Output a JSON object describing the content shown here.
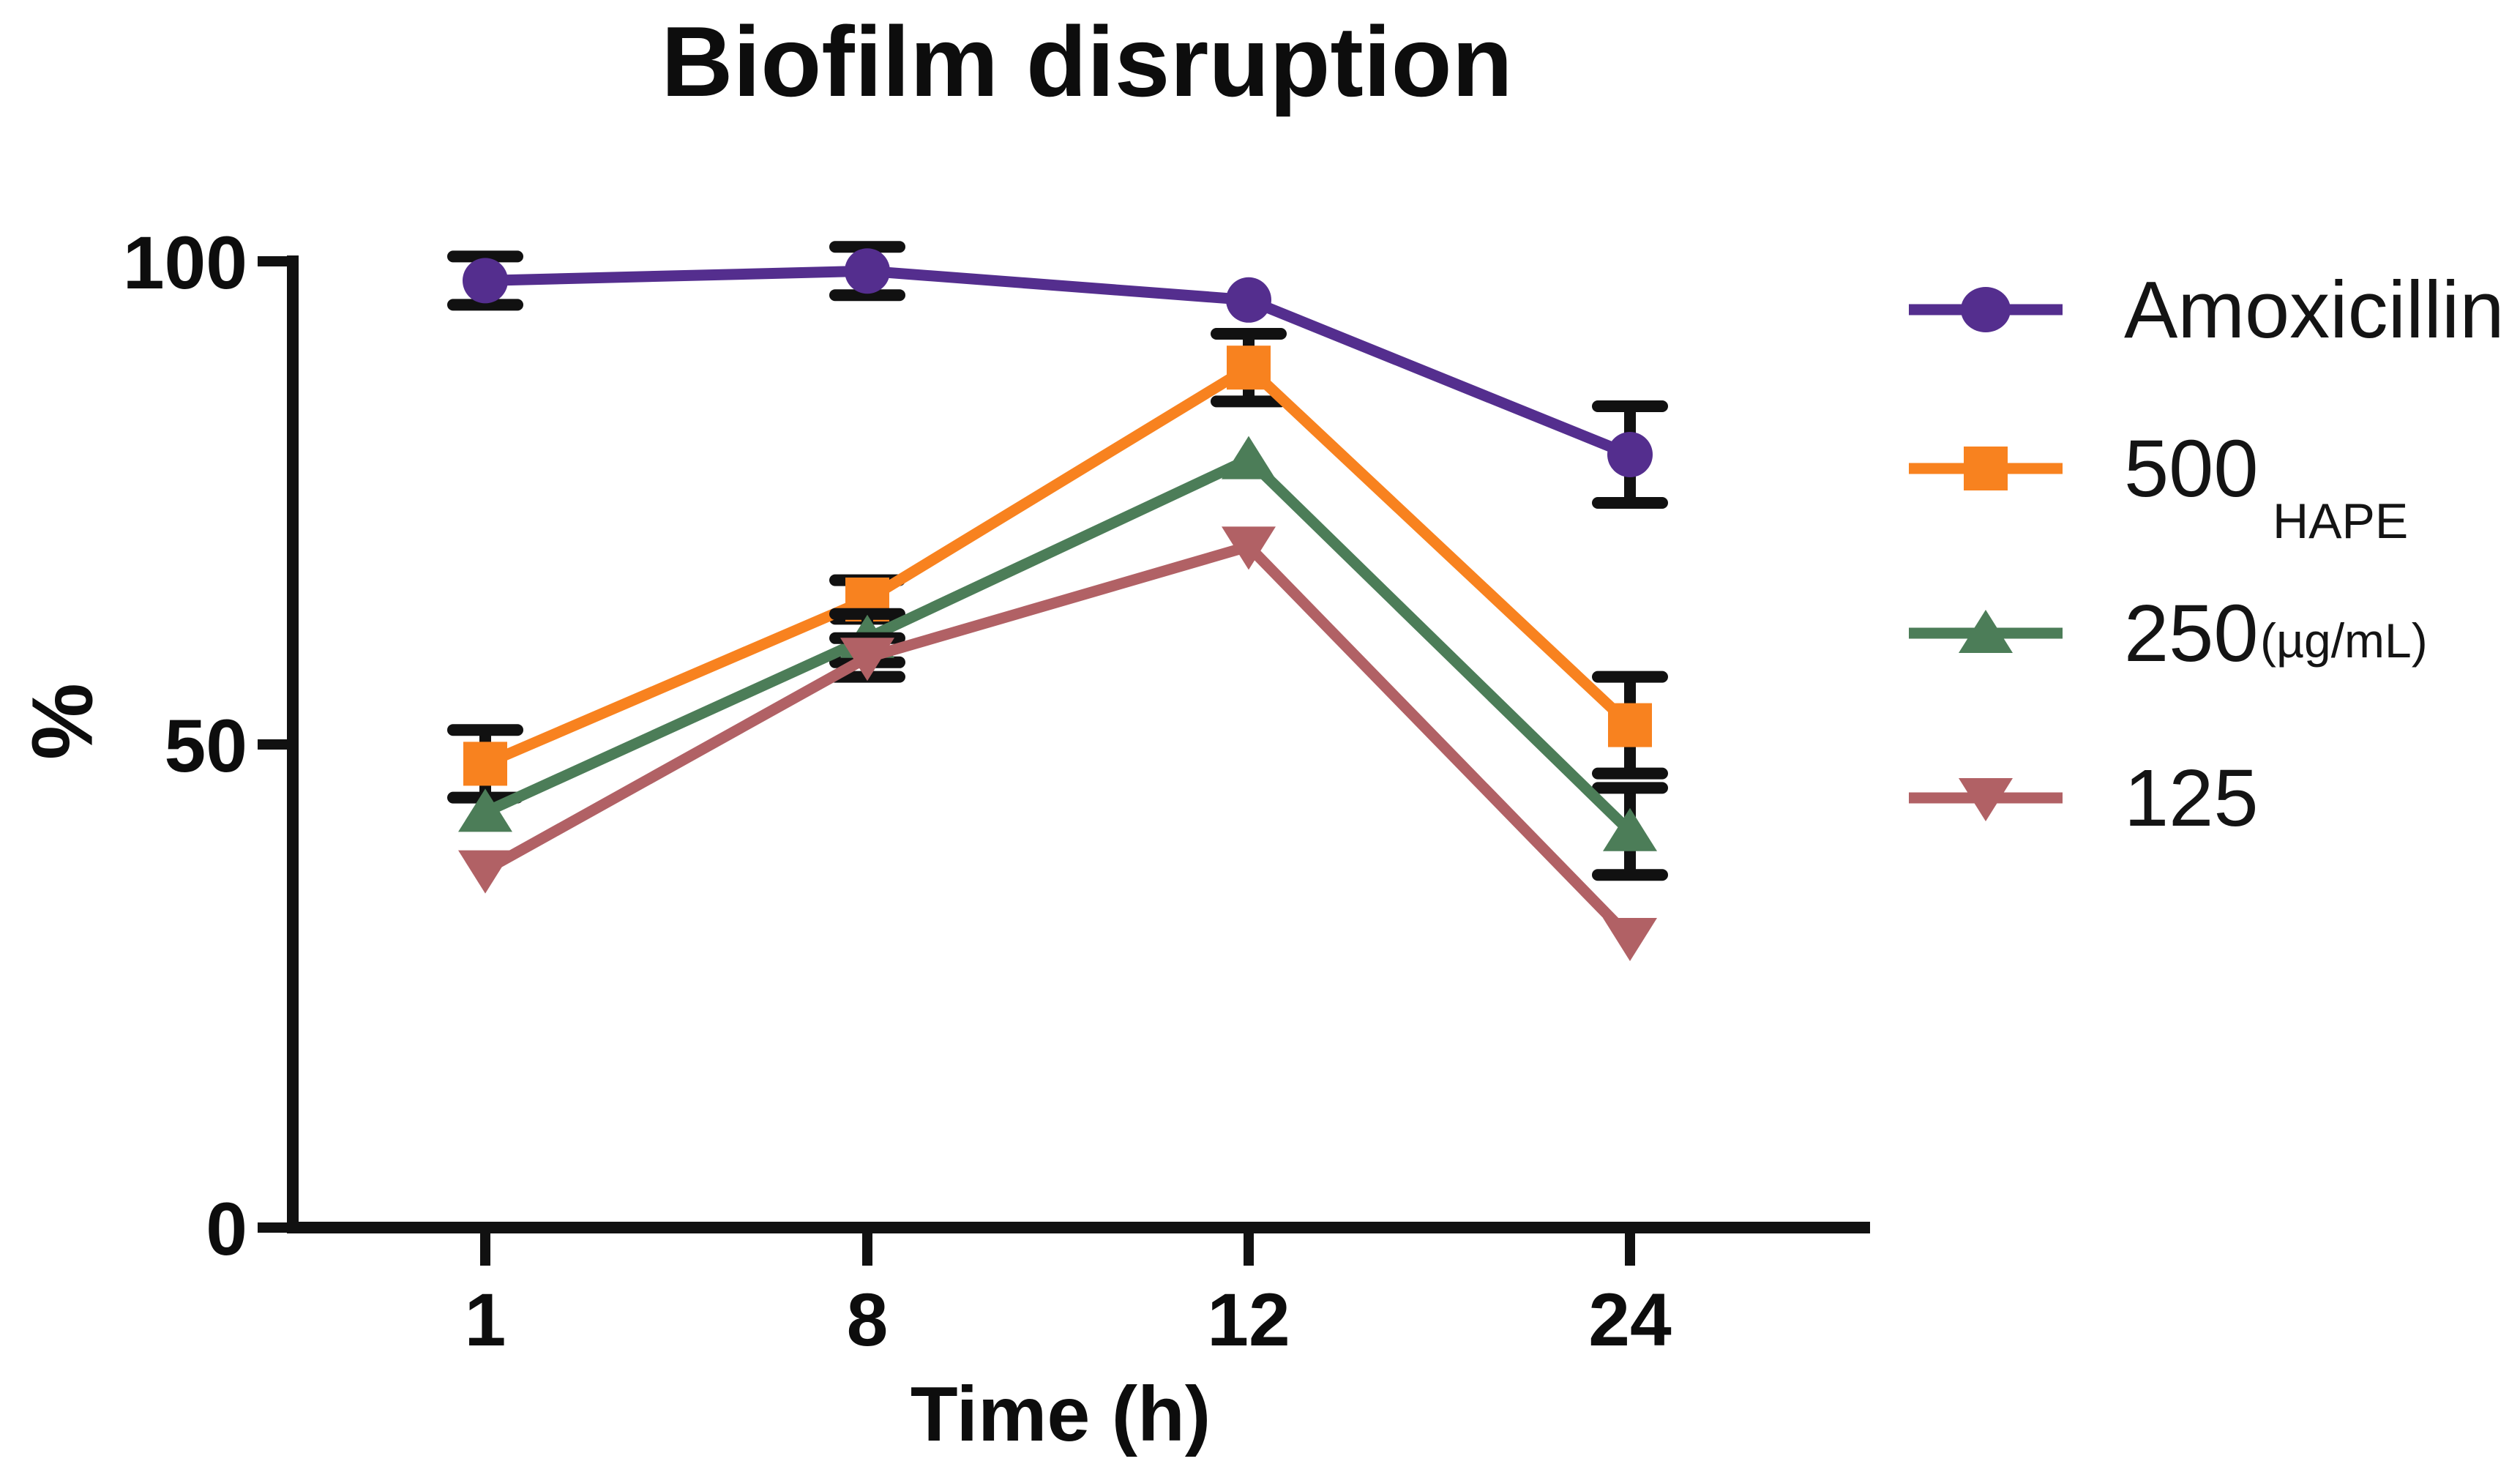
{
  "chart_data": {
    "type": "line",
    "title": "Biofilm disruption",
    "xlabel": "Time (h)",
    "ylabel": "%",
    "x_categories": [
      "1",
      "8",
      "12",
      "24"
    ],
    "y_ticks": [
      100,
      50,
      0
    ],
    "y_tick_labels": [
      "100",
      "50",
      "0"
    ],
    "ylim": [
      0,
      100
    ],
    "grid": false,
    "legend_position": "right",
    "background": "#ffffff",
    "axis_color": "#111111",
    "error_bar_color": "#111111",
    "series": [
      {
        "name": "Amoxicillin",
        "marker": "circle",
        "color": "#542E8E",
        "values": [
          98,
          99,
          96,
          80
        ],
        "errors": [
          2.5,
          2.5,
          0,
          5
        ]
      },
      {
        "name": "500",
        "marker": "square",
        "color": "#F8821F",
        "values": [
          48,
          65,
          89,
          52
        ],
        "errors": [
          3.5,
          2,
          3.5,
          5
        ]
      },
      {
        "name": "250",
        "marker": "triangle-up",
        "color": "#4C7D58",
        "values": [
          43,
          61,
          79.5,
          41
        ],
        "errors": [
          0,
          2.5,
          0,
          4.5
        ]
      },
      {
        "name": "125",
        "marker": "triangle-down",
        "color": "#B16165",
        "values": [
          37,
          59,
          70.5,
          30
        ],
        "errors": [
          0,
          2,
          0,
          0
        ]
      }
    ],
    "legend_annotation": {
      "line1": "HAPE",
      "line2": "(µg/mL)"
    }
  }
}
